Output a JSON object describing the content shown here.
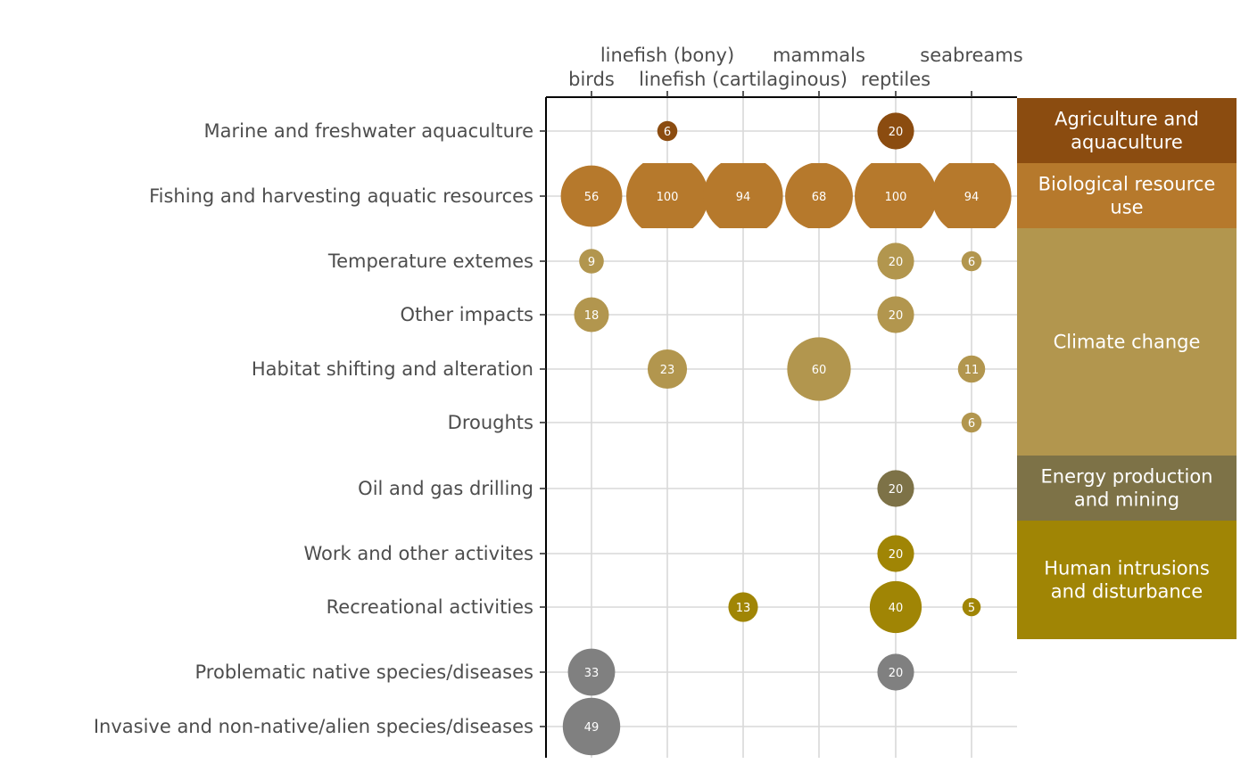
{
  "chart_data": {
    "type": "bubble",
    "title": "",
    "xlabel": "",
    "ylabel": "",
    "columns": [
      "birds",
      "linefish (bony)",
      "linefish (cartilaginous)",
      "mammals",
      "reptiles",
      "seabreams"
    ],
    "column_tick_text": [
      "birds",
      "linefish (bony)",
      "linefish (cartilaginous)",
      "mammals",
      "reptiles",
      "seabreams"
    ],
    "rows": [
      {
        "label": "Marine and freshwater aquaculture",
        "group": "Agriculture and aquaculture"
      },
      {
        "label": "Fishing and harvesting aquatic resources",
        "group": "Biological resource use"
      },
      {
        "label": "Temperature extemes",
        "group": "Climate change"
      },
      {
        "label": "Other impacts",
        "group": "Climate change"
      },
      {
        "label": "Habitat shifting and alteration",
        "group": "Climate change"
      },
      {
        "label": "Droughts",
        "group": "Climate change"
      },
      {
        "label": "Oil and gas drilling",
        "group": "Energy production and mining"
      },
      {
        "label": "Work and other activites",
        "group": "Human intrusions and disturbance"
      },
      {
        "label": "Recreational activities",
        "group": "Human intrusions and disturbance"
      },
      {
        "label": "Problematic native species/diseases",
        "group": ""
      },
      {
        "label": "Invasive and non-native/alien species/diseases",
        "group": ""
      }
    ],
    "groups": [
      {
        "name": "Agriculture and aquaculture",
        "lines": [
          "Agriculture and",
          "aquaculture"
        ],
        "color": "#8B4C10"
      },
      {
        "name": "Biological resource use",
        "lines": [
          "Biological resource",
          "use"
        ],
        "color": "#B6792C"
      },
      {
        "name": "Climate change",
        "lines": [
          "Climate change"
        ],
        "color": "#B2964E"
      },
      {
        "name": "Energy production and mining",
        "lines": [
          "Energy production",
          "and mining"
        ],
        "color": "#7D7247"
      },
      {
        "name": "Human intrusions and disturbance",
        "lines": [
          "Human intrusions",
          "and disturbance"
        ],
        "color": "#A08505"
      }
    ],
    "ungrouped_color": "#808080",
    "points": [
      {
        "row": 0,
        "col": 1,
        "value": 6
      },
      {
        "row": 0,
        "col": 4,
        "value": 20
      },
      {
        "row": 1,
        "col": 0,
        "value": 56
      },
      {
        "row": 1,
        "col": 1,
        "value": 100
      },
      {
        "row": 1,
        "col": 2,
        "value": 94
      },
      {
        "row": 1,
        "col": 3,
        "value": 68
      },
      {
        "row": 1,
        "col": 4,
        "value": 100
      },
      {
        "row": 1,
        "col": 5,
        "value": 94
      },
      {
        "row": 2,
        "col": 0,
        "value": 9
      },
      {
        "row": 2,
        "col": 4,
        "value": 20
      },
      {
        "row": 2,
        "col": 5,
        "value": 6
      },
      {
        "row": 3,
        "col": 0,
        "value": 18
      },
      {
        "row": 3,
        "col": 4,
        "value": 20
      },
      {
        "row": 4,
        "col": 1,
        "value": 23
      },
      {
        "row": 4,
        "col": 3,
        "value": 60
      },
      {
        "row": 4,
        "col": 5,
        "value": 11
      },
      {
        "row": 5,
        "col": 5,
        "value": 6
      },
      {
        "row": 6,
        "col": 4,
        "value": 20
      },
      {
        "row": 7,
        "col": 4,
        "value": 20
      },
      {
        "row": 8,
        "col": 2,
        "value": 13
      },
      {
        "row": 8,
        "col": 4,
        "value": 40
      },
      {
        "row": 8,
        "col": 5,
        "value": 5
      },
      {
        "row": 9,
        "col": 0,
        "value": 33
      },
      {
        "row": 9,
        "col": 4,
        "value": 20
      },
      {
        "row": 10,
        "col": 0,
        "value": 49
      }
    ],
    "grid": true,
    "x_axis_position": "top",
    "legend": "none"
  }
}
